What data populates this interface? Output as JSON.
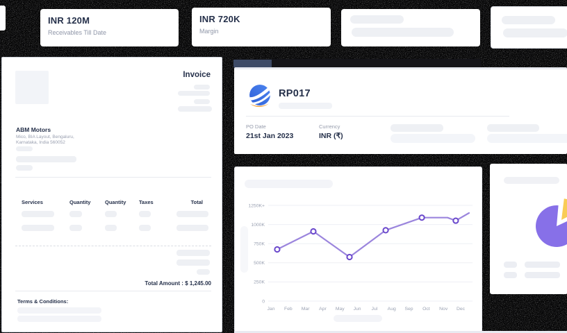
{
  "kpi_cards": [
    {
      "value": "INR 120M",
      "label": "Receivables Till Date"
    },
    {
      "value": "INR 720K",
      "label": "Margin"
    }
  ],
  "invoice": {
    "title": "Invoice",
    "company": "ABM Motors",
    "address_line1": "Mico, BIA Layout, Bengaluru,",
    "address_line2": "Karnataka, India 560052",
    "table_headers": [
      "Services",
      "Quantity",
      "Quantity",
      "Taxes",
      "Total"
    ],
    "total_line": "Total Amount : $ 1,245.00",
    "terms_label": "Terms & Conditions:"
  },
  "po_panel": {
    "code": "RP017",
    "po_date_label": "PO Date",
    "po_date": "21st Jan 2023",
    "currency_label": "Currency",
    "currency": "INR (₹)",
    "logo_icon": "globe-swoosh-logo"
  },
  "chart_data": {
    "type": "line",
    "title": "",
    "x": [
      "Jan",
      "Feb",
      "Mar",
      "Apr",
      "May",
      "Jun",
      "Jul",
      "Aug",
      "Sep",
      "Oct",
      "Nov",
      "Dec"
    ],
    "y_ticks": [
      {
        "label": "1250K+",
        "value_k": 1250
      },
      {
        "label": "1000K",
        "value_k": 1000
      },
      {
        "label": "750K",
        "value_k": 750
      },
      {
        "label": "500K",
        "value_k": 500
      },
      {
        "label": "250K",
        "value_k": 250
      },
      {
        "label": "0",
        "value_k": 0
      }
    ],
    "ylim_k": [
      0,
      1250
    ],
    "grid": "horizontal-only",
    "legend": "none",
    "series": [
      {
        "name": "monthly-receivables-trend",
        "points": [
          {
            "x_frac": 0.044,
            "value_k": 675,
            "marker": true
          },
          {
            "x_frac": 0.221,
            "value_k": 910,
            "marker": true
          },
          {
            "x_frac": 0.398,
            "value_k": 575,
            "marker": true
          },
          {
            "x_frac": 0.575,
            "value_k": 925,
            "marker": true
          },
          {
            "x_frac": 0.752,
            "value_k": 1090,
            "marker": true
          },
          {
            "x_frac": 0.878,
            "value_k": 1090,
            "marker": false
          },
          {
            "x_frac": 0.918,
            "value_k": 1050,
            "marker": true
          },
          {
            "x_frac": 0.983,
            "value_k": 1150,
            "marker": false
          }
        ]
      }
    ],
    "line_color": "#9b85dd",
    "marker_stroke": "#6a48cc",
    "grid_color": "#edeff4",
    "tick_color": "#9aa1b2"
  },
  "pie_chart": {
    "type": "pie",
    "slices": [
      {
        "name": "remainder",
        "color": "#8770e8",
        "fraction": 0.83
      },
      {
        "name": "highlight",
        "color": "#f9cc55",
        "fraction": 0.17
      }
    ]
  },
  "colors": {
    "background": "#020203",
    "heading_navy": "#25304a",
    "label_gray": "#8f96a8",
    "skeleton": "#eef0f4",
    "logo_blue": "#3b6ee2",
    "logo_orange": "#f2a43d",
    "chrome_fragment_blue": "#3d4a66"
  }
}
